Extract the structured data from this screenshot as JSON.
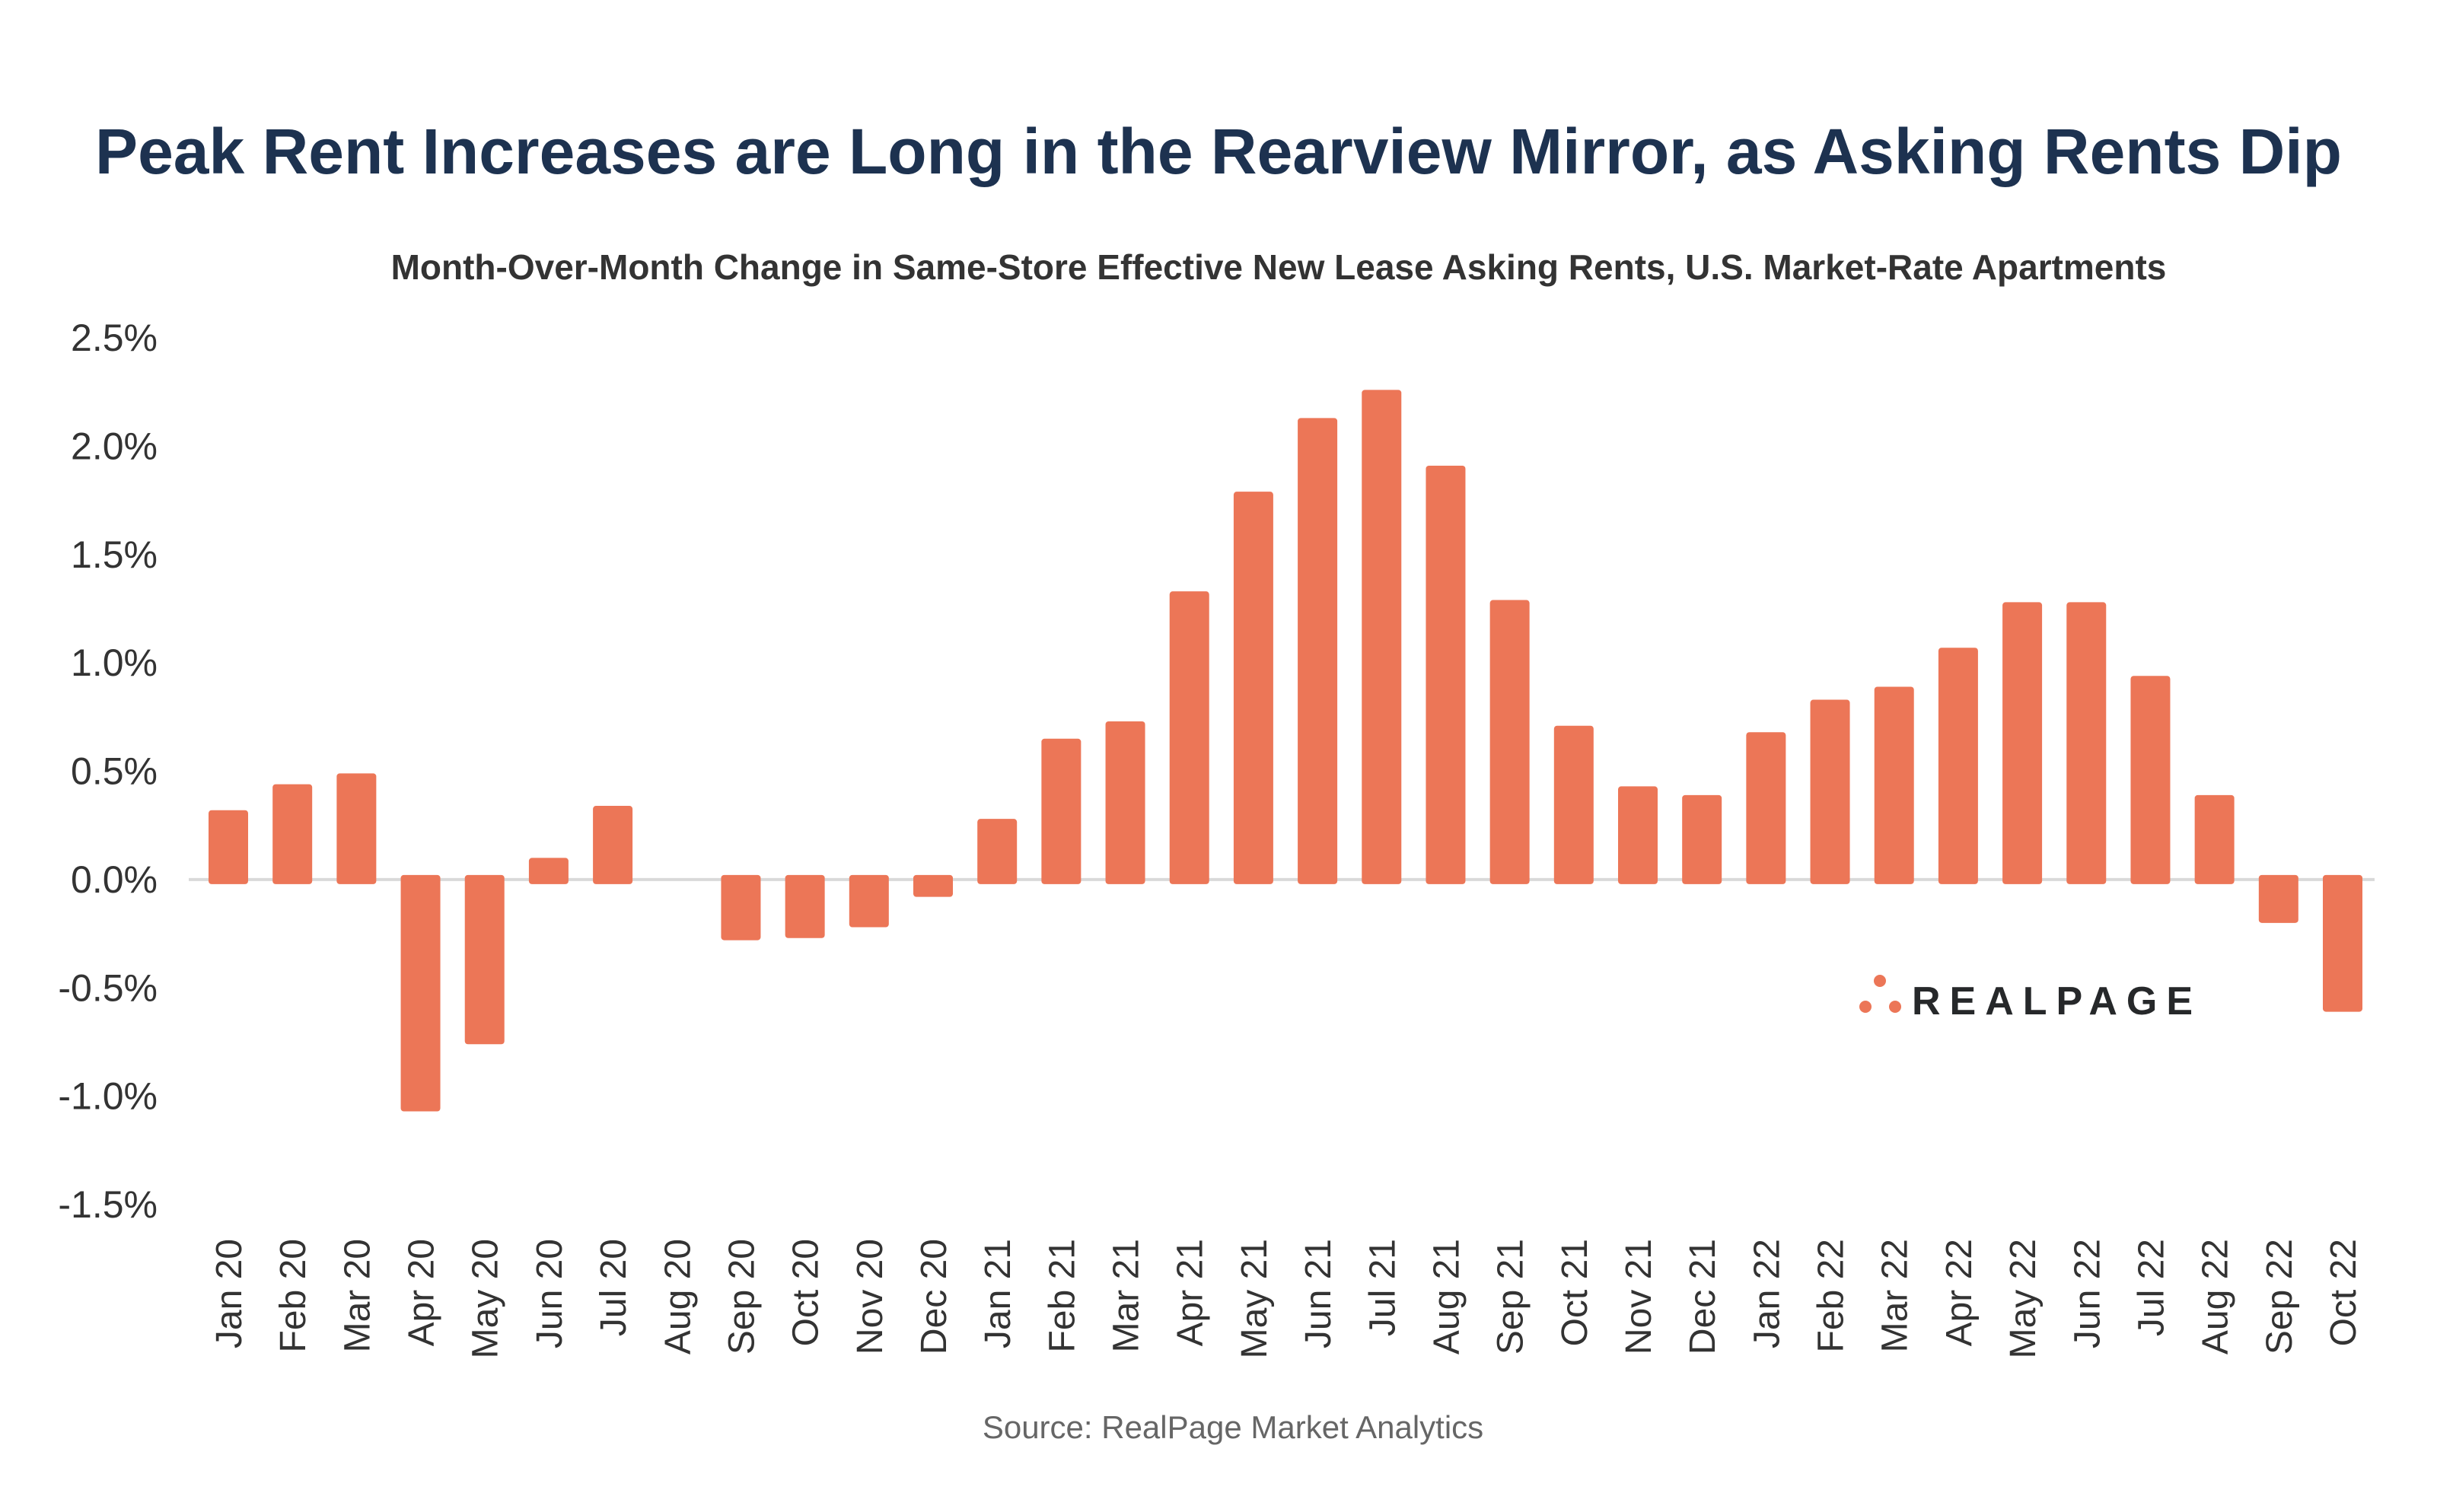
{
  "chart_data": {
    "type": "bar",
    "title": "Peak Rent Increases are Long in the Rearview Mirror, as Asking Rents Dip",
    "subtitle": "Month-Over-Month Change in Same-Store Effective New Lease Asking Rents, U.S. Market-Rate Apartments",
    "xlabel": "",
    "ylabel": "",
    "ylim": [
      -1.5,
      2.5
    ],
    "yticks": [
      2.5,
      2.0,
      1.5,
      1.0,
      0.5,
      0.0,
      -0.5,
      -1.0,
      -1.5
    ],
    "ytick_labels": [
      "2.5%",
      "2.0%",
      "1.5%",
      "1.0%",
      "0.5%",
      "0.0%",
      "-0.5%",
      "-1.0%",
      "-1.5%"
    ],
    "grid": false,
    "categories": [
      "Jan 20",
      "Feb 20",
      "Mar 20",
      "Apr 20",
      "May 20",
      "Jun 20",
      "Jul 20",
      "Aug 20",
      "Sep 20",
      "Oct 20",
      "Nov 20",
      "Dec 20",
      "Jan 21",
      "Feb 21",
      "Mar 21",
      "Apr 21",
      "May 21",
      "Jun 21",
      "Jul 21",
      "Aug 21",
      "Sep 21",
      "Oct 21",
      "Nov 21",
      "Dec 21",
      "Jan 22",
      "Feb 22",
      "Mar 22",
      "Apr 22",
      "May 22",
      "Jun 22",
      "Jul 22",
      "Aug 22",
      "Sep 22",
      "Oct 22"
    ],
    "values": [
      0.32,
      0.44,
      0.49,
      -1.07,
      -0.76,
      0.1,
      0.34,
      0.0,
      -0.28,
      -0.27,
      -0.22,
      -0.08,
      0.28,
      0.65,
      0.73,
      1.33,
      1.79,
      2.13,
      2.26,
      1.91,
      1.29,
      0.71,
      0.43,
      0.39,
      0.68,
      0.83,
      0.89,
      1.07,
      1.28,
      1.28,
      0.94,
      0.39,
      -0.2,
      -0.61
    ],
    "unit": "%",
    "bar_color": "#ec7657",
    "source": "Source: RealPage Market Analytics"
  },
  "logo": {
    "text": "REALPAGE",
    "color": "#ec7657"
  }
}
